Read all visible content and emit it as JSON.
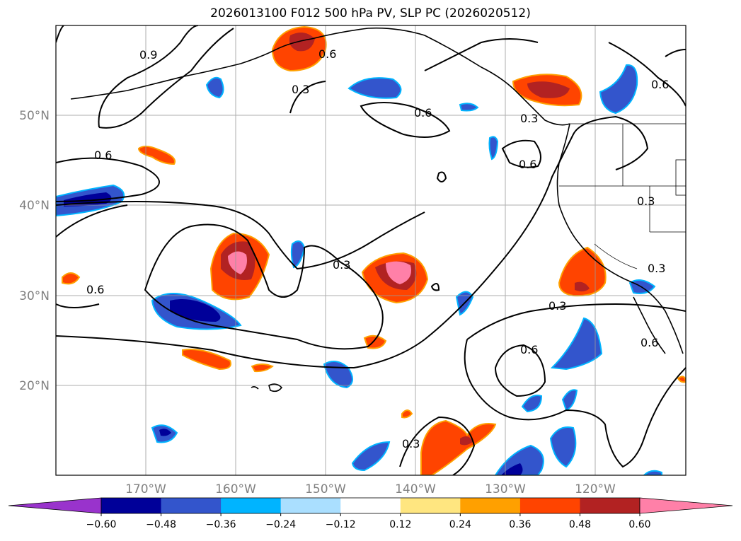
{
  "title": "2026013100 F012 500 hPa PV, SLP PC (2026020512)",
  "lat_labels": [
    "50°N",
    "40°N",
    "30°N",
    "20°N"
  ],
  "lon_labels": [
    "170°W",
    "160°W",
    "150°W",
    "140°W",
    "130°W",
    "120°W"
  ],
  "colorbar": {
    "ticks": [
      "−0.60",
      "−0.48",
      "−0.36",
      "−0.24",
      "−0.12",
      "0.12",
      "0.24",
      "0.36",
      "0.48",
      "0.60"
    ],
    "colors": [
      "#9933cc",
      "#000099",
      "#3355cc",
      "#00b4ff",
      "#aadfff",
      "#ffffff",
      "#ffe680",
      "#ffa000",
      "#ff4400",
      "#b22222",
      "#ff80a8"
    ]
  },
  "contour_labels": [
    "0.3",
    "0.6",
    "0.9"
  ]
}
